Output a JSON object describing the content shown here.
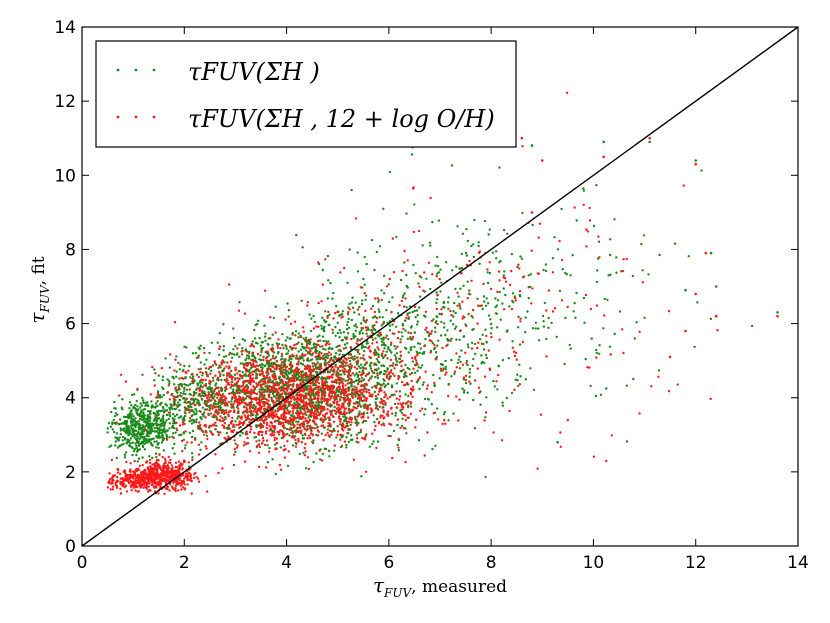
{
  "chart_data": {
    "type": "scatter",
    "xlabel_symbol": "τ",
    "xlabel_sub": "FUV",
    "xlabel_rest": ", measured",
    "ylabel_symbol": "τ",
    "ylabel_sub": "FUV",
    "ylabel_rest": ", fit",
    "xlim": [
      0,
      14
    ],
    "ylim": [
      0,
      14
    ],
    "xticks": [
      0,
      2,
      4,
      6,
      8,
      10,
      12,
      14
    ],
    "yticks": [
      0,
      2,
      4,
      6,
      8,
      10,
      12,
      14
    ],
    "legend_position": "top-left",
    "reference_line": {
      "x": [
        0,
        14
      ],
      "y": [
        0,
        14
      ],
      "color": "#000000"
    },
    "series": [
      {
        "name": "τFUV(ΣH )",
        "legend_label": "τFUV(ΣH )",
        "color": "#1a8a1a",
        "clusters": [
          {
            "cx": 1.2,
            "cy": 3.2,
            "sx": 0.35,
            "sy": 0.35,
            "n": 550
          },
          {
            "cx": 2.2,
            "cy": 3.9,
            "sx": 0.45,
            "sy": 0.45,
            "n": 300
          },
          {
            "cx": 4.2,
            "cy": 4.3,
            "sx": 0.9,
            "sy": 0.75,
            "n": 1300
          },
          {
            "cx": 5.8,
            "cy": 5.2,
            "sx": 1.0,
            "sy": 1.0,
            "n": 500
          },
          {
            "cx": 7.8,
            "cy": 6.6,
            "sx": 1.2,
            "sy": 1.4,
            "n": 260
          },
          {
            "cx": 10.5,
            "cy": 7.0,
            "sx": 1.2,
            "sy": 1.8,
            "n": 50
          }
        ],
        "outliers": [
          [
            11.1,
            10.9
          ],
          [
            12.0,
            10.4
          ],
          [
            10.2,
            10.9
          ],
          [
            12.4,
            7.0
          ],
          [
            13.6,
            6.3
          ],
          [
            11.8,
            6.9
          ],
          [
            12.3,
            7.9
          ],
          [
            8.8,
            10.8
          ],
          [
            8.4,
            11.7
          ],
          [
            9.3,
            2.8
          ]
        ]
      },
      {
        "name": "τFUV(ΣH , 12 + log O/H)",
        "legend_label": "τFUV(ΣH , 12 + log O/H)",
        "color": "#ff1a1a",
        "clusters": [
          {
            "cx": 1.0,
            "cy": 1.75,
            "sx": 0.3,
            "sy": 0.12,
            "n": 250
          },
          {
            "cx": 1.6,
            "cy": 1.9,
            "sx": 0.3,
            "sy": 0.2,
            "n": 500
          },
          {
            "cx": 3.8,
            "cy": 3.9,
            "sx": 1.0,
            "sy": 0.6,
            "n": 1500
          },
          {
            "cx": 5.0,
            "cy": 4.5,
            "sx": 0.9,
            "sy": 0.8,
            "n": 500
          },
          {
            "cx": 7.0,
            "cy": 5.8,
            "sx": 1.3,
            "sy": 1.5,
            "n": 220
          },
          {
            "cx": 10.0,
            "cy": 6.5,
            "sx": 1.3,
            "sy": 2.0,
            "n": 50
          }
        ],
        "outliers": [
          [
            8.3,
            11.9
          ],
          [
            10.2,
            10.5
          ],
          [
            11.1,
            11.0
          ],
          [
            12.0,
            10.3
          ],
          [
            12.4,
            6.2
          ],
          [
            13.6,
            6.2
          ],
          [
            11.8,
            5.8
          ],
          [
            11.5,
            5.1
          ],
          [
            12.0,
            6.8
          ],
          [
            12.2,
            7.9
          ],
          [
            8.8,
            9.0
          ],
          [
            8.6,
            11.0
          ],
          [
            9.0,
            10.4
          ]
        ]
      }
    ]
  }
}
